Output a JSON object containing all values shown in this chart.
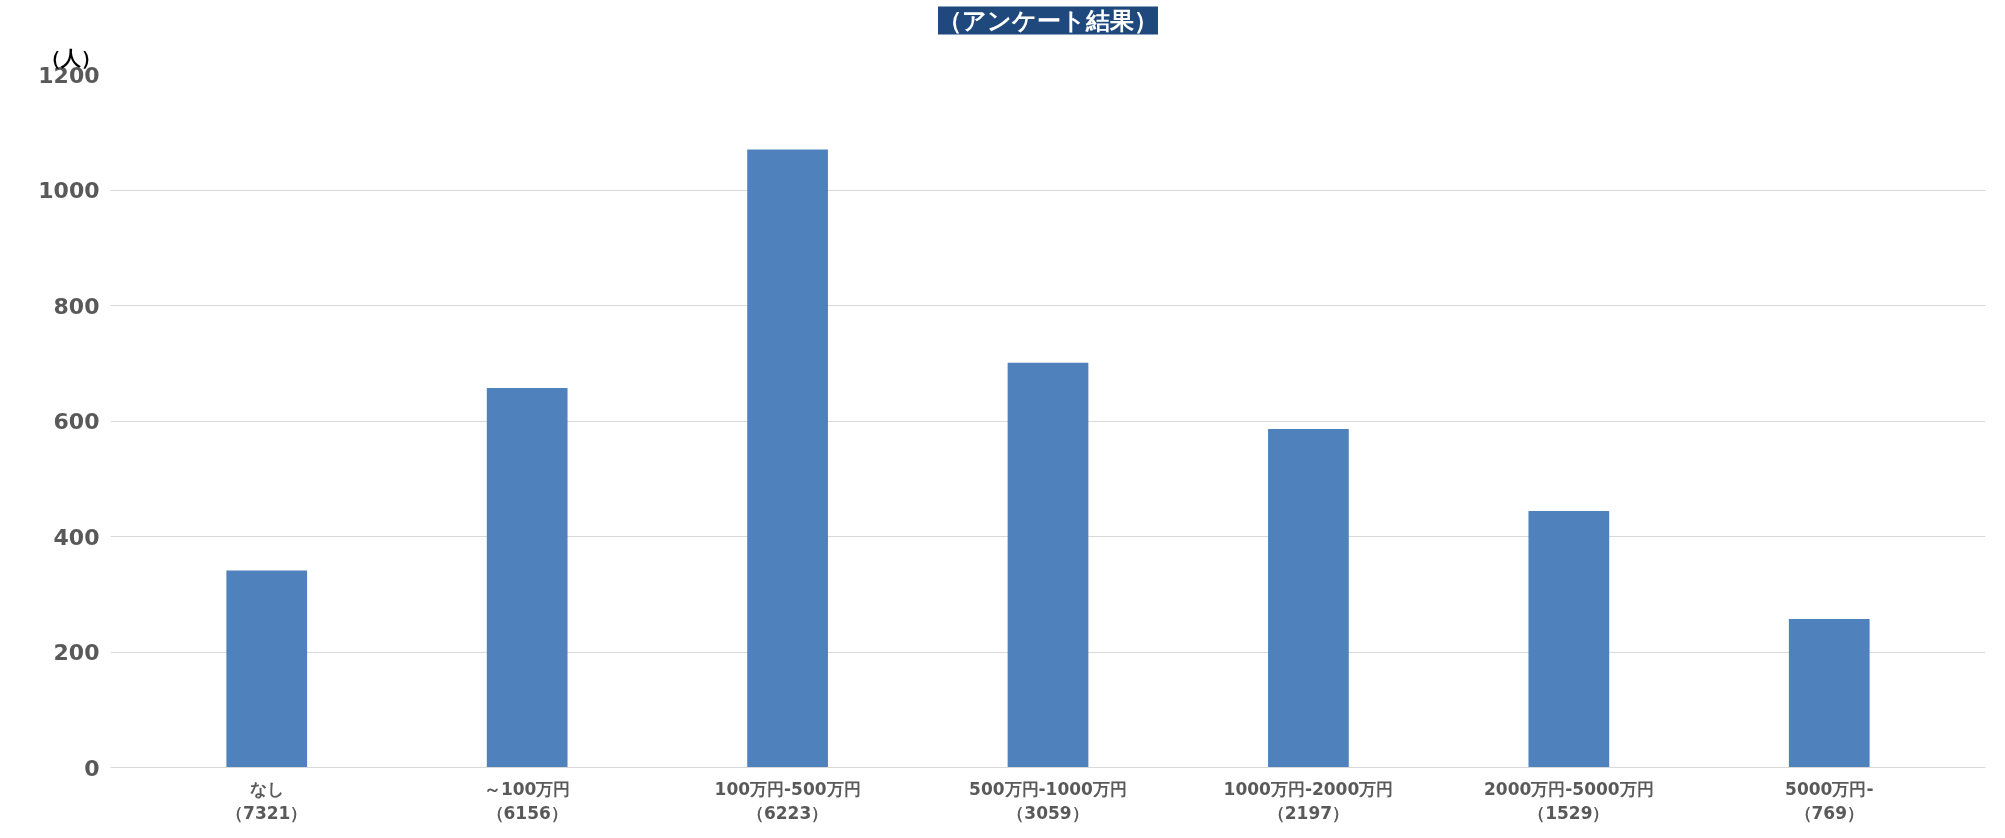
{
  "chart_data": {
    "type": "bar",
    "title": "（アンケート結果）",
    "ylabel": "（人）",
    "categories": [
      "なし（7321）",
      "～100万円（6156）",
      "100万円-500万円（6223）",
      "500万円-1000万円（3059）",
      "1000万円-2000万円（2197）",
      "2000万円-5000万円（1529）",
      "5000万円-（769）"
    ],
    "values": [
      341,
      657,
      1070,
      701,
      586,
      444,
      257
    ],
    "color": "#4f81bd",
    "ylim": [
      0,
      1200
    ],
    "yticks": [
      0,
      200,
      400,
      600,
      800,
      1000,
      1200
    ],
    "grid": "y"
  }
}
